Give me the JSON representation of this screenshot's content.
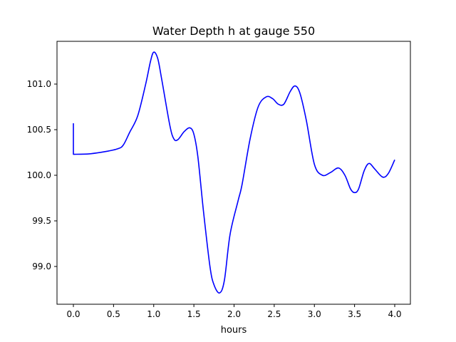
{
  "chart_data": {
    "type": "line",
    "title": "Water Depth h at gauge 550",
    "xlabel": "hours",
    "ylabel": "",
    "xlim": [
      -0.2,
      4.2
    ],
    "ylim": [
      98.59,
      101.47
    ],
    "xticks": [
      0.0,
      0.5,
      1.0,
      1.5,
      2.0,
      2.5,
      3.0,
      3.5,
      4.0
    ],
    "xtick_labels": [
      "0.0",
      "0.5",
      "1.0",
      "1.5",
      "2.0",
      "2.5",
      "3.0",
      "3.5",
      "4.0"
    ],
    "yticks": [
      99.0,
      99.5,
      100.0,
      100.5,
      101.0
    ],
    "ytick_labels": [
      "99.0",
      "99.5",
      "100.0",
      "100.5",
      "101.0"
    ],
    "grid": false,
    "series": [
      {
        "name": "h",
        "color": "#0000ff",
        "x": [
          0,
          0,
          0.2,
          0.4,
          0.55,
          0.62,
          0.7,
          0.8,
          0.9,
          0.96,
          1.0,
          1.05,
          1.1,
          1.2,
          1.25,
          1.3,
          1.38,
          1.45,
          1.5,
          1.55,
          1.62,
          1.7,
          1.75,
          1.82,
          1.88,
          1.95,
          2.05,
          2.1,
          2.2,
          2.3,
          2.4,
          2.48,
          2.55,
          2.62,
          2.7,
          2.76,
          2.82,
          2.9,
          3.0,
          3.1,
          3.2,
          3.3,
          3.38,
          3.45,
          3.5,
          3.55,
          3.62,
          3.68,
          3.75,
          3.85,
          3.92,
          4.0
        ],
        "y": [
          100.57,
          100.23,
          100.235,
          100.26,
          100.29,
          100.33,
          100.47,
          100.65,
          101.0,
          101.25,
          101.35,
          101.28,
          101.05,
          100.55,
          100.4,
          100.39,
          100.48,
          100.52,
          100.45,
          100.2,
          99.6,
          99.0,
          98.8,
          98.71,
          98.85,
          99.35,
          99.72,
          99.9,
          100.4,
          100.75,
          100.86,
          100.84,
          100.78,
          100.78,
          100.92,
          100.98,
          100.9,
          100.6,
          100.12,
          100.0,
          100.03,
          100.08,
          100.0,
          99.85,
          99.81,
          99.85,
          100.05,
          100.13,
          100.07,
          99.98,
          100.02,
          100.17
        ]
      }
    ]
  }
}
